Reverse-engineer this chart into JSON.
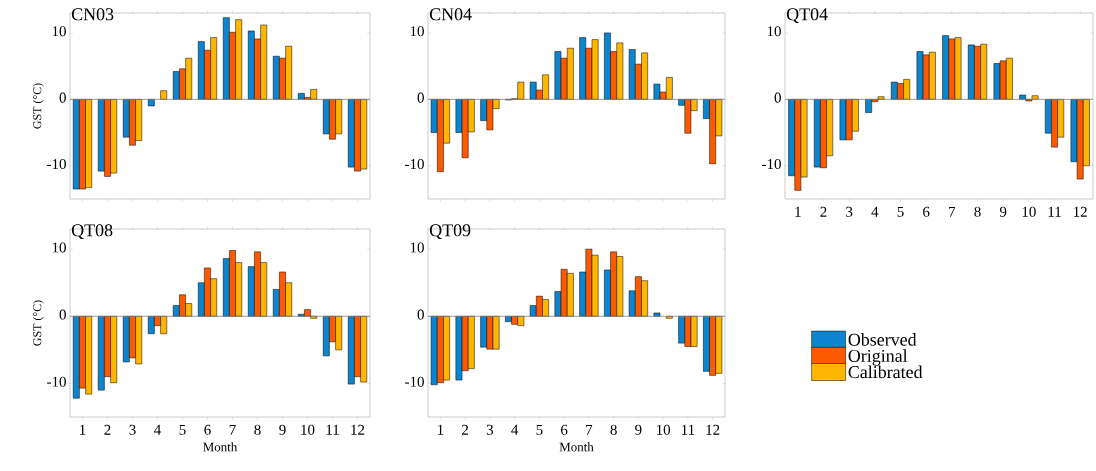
{
  "chart_data": [
    {
      "type": "bar",
      "title": "CN03",
      "ylabel": "GST (°C)",
      "categories": [
        null,
        null,
        null,
        null,
        null,
        null,
        null,
        null,
        null,
        null,
        null,
        null
      ],
      "ylim": [
        -15,
        13
      ],
      "yticks": [
        -10,
        0,
        10
      ],
      "series": [
        {
          "color": "#0b85cf",
          "values": [
            -13.5,
            -10.8,
            -5.7,
            -1.0,
            4.2,
            8.7,
            12.3,
            10.3,
            6.5,
            0.9,
            -5.2,
            -10.2
          ]
        },
        {
          "color": "#fd5a00",
          "values": [
            -13.5,
            -11.6,
            -6.9,
            null,
            4.6,
            7.4,
            10.1,
            9.1,
            6.2,
            0.3,
            -6.0,
            -10.8
          ]
        },
        {
          "color": "#ffb600",
          "values": [
            -13.3,
            -11.1,
            -6.2,
            1.3,
            6.2,
            9.3,
            12.0,
            11.2,
            8.0,
            1.5,
            -5.2,
            -10.5
          ]
        }
      ]
    },
    {
      "type": "bar",
      "title": "CN04",
      "categories": [
        null,
        null,
        null,
        null,
        null,
        null,
        null,
        null,
        null,
        null,
        null,
        null
      ],
      "ylim": [
        -15,
        13
      ],
      "yticks": [
        -10,
        0,
        10
      ],
      "series": [
        {
          "color": "#0b85cf",
          "values": [
            -5.0,
            -5.0,
            -3.2,
            -0.1,
            2.6,
            7.2,
            9.3,
            10.0,
            7.5,
            2.3,
            -0.9,
            -2.9
          ]
        },
        {
          "color": "#fd5a00",
          "values": [
            -10.9,
            -8.8,
            -4.6,
            0.1,
            1.4,
            6.2,
            7.7,
            7.2,
            5.3,
            1.1,
            -5.1,
            -9.7
          ]
        },
        {
          "color": "#ffb600",
          "values": [
            -6.6,
            -4.9,
            -1.4,
            2.6,
            3.7,
            7.7,
            9.0,
            8.5,
            7.0,
            3.3,
            -1.7,
            -5.5
          ]
        }
      ]
    },
    {
      "type": "bar",
      "title": "QT04",
      "categories": [
        "1",
        "2",
        "3",
        "4",
        "5",
        "6",
        "7",
        "8",
        "9",
        "10",
        "11",
        "12"
      ],
      "ylim": [
        -15,
        13
      ],
      "yticks": [
        -10,
        0,
        10
      ],
      "series": [
        {
          "color": "#0b85cf",
          "values": [
            -11.5,
            -10.2,
            -6.1,
            -2.0,
            2.6,
            7.2,
            9.6,
            8.2,
            5.4,
            0.65,
            -5.1,
            -9.4
          ]
        },
        {
          "color": "#fd5a00",
          "values": [
            -13.7,
            -10.3,
            -6.1,
            -0.35,
            2.4,
            6.7,
            9.1,
            8.0,
            5.8,
            -0.25,
            -7.2,
            -12.0
          ]
        },
        {
          "color": "#ffb600",
          "values": [
            -11.7,
            -8.5,
            -4.8,
            0.4,
            3.0,
            7.1,
            9.3,
            8.3,
            6.2,
            0.55,
            -5.7,
            -10.0
          ]
        }
      ]
    },
    {
      "type": "bar",
      "title": "QT08",
      "xlabel": "Month",
      "ylabel": "GST (°C)",
      "categories": [
        "1",
        "2",
        "3",
        "4",
        "5",
        "6",
        "7",
        "8",
        "9",
        "10",
        "11",
        "12"
      ],
      "ylim": [
        -15,
        13
      ],
      "yticks": [
        -10,
        0,
        10
      ],
      "series": [
        {
          "color": "#0b85cf",
          "values": [
            -12.2,
            -11.0,
            -6.8,
            -2.6,
            1.6,
            5.0,
            8.6,
            7.4,
            4.0,
            0.3,
            -5.9,
            -10.1
          ]
        },
        {
          "color": "#fd5a00",
          "values": [
            -10.7,
            -9.0,
            -6.2,
            -1.4,
            3.2,
            7.2,
            9.8,
            9.6,
            6.6,
            1.0,
            -3.8,
            -9.0
          ]
        },
        {
          "color": "#ffb600",
          "values": [
            -11.6,
            -9.9,
            -7.1,
            -2.6,
            1.9,
            5.6,
            8.0,
            8.0,
            5.0,
            -0.3,
            -5.0,
            -9.8
          ]
        }
      ]
    },
    {
      "type": "bar",
      "title": "QT09",
      "xlabel": "Month",
      "legend": "right",
      "categories": [
        "1",
        "2",
        "3",
        "4",
        "5",
        "6",
        "7",
        "8",
        "9",
        "10",
        "11",
        "12"
      ],
      "ylim": [
        -15,
        13
      ],
      "yticks": [
        -10,
        0,
        10
      ],
      "series": [
        {
          "name": "Observed",
          "color": "#0b85cf",
          "values": [
            -10.2,
            -9.5,
            -4.6,
            -0.8,
            1.6,
            3.7,
            6.6,
            6.9,
            3.8,
            0.5,
            -4.0,
            -8.2
          ]
        },
        {
          "name": "Original",
          "color": "#fd5a00",
          "values": [
            -9.9,
            -8.1,
            -4.9,
            -1.2,
            3.0,
            7.0,
            10.0,
            9.6,
            5.9,
            null,
            -4.5,
            -8.8
          ]
        },
        {
          "name": "Calibrated",
          "color": "#ffb600",
          "values": [
            -9.5,
            -7.8,
            -4.9,
            -1.4,
            2.5,
            6.4,
            9.1,
            8.9,
            5.3,
            -0.3,
            -4.5,
            -8.5
          ]
        }
      ]
    }
  ]
}
